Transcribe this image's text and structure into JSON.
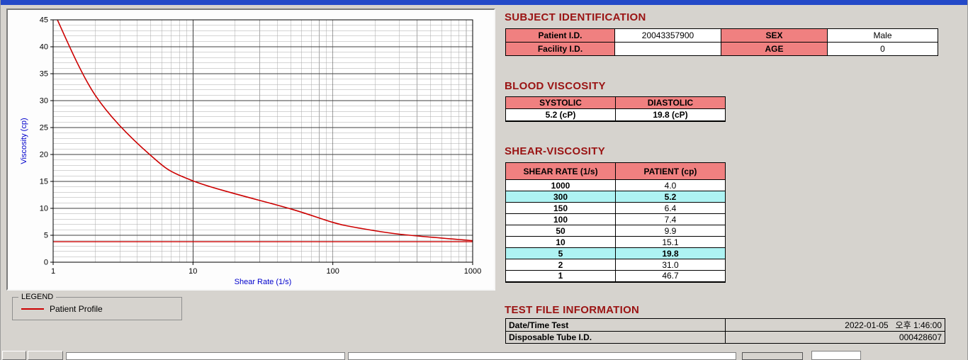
{
  "colors": {
    "header_pink": "#f08080",
    "highlight_cyan": "#aef3f3",
    "heading_maroon": "#9a1313",
    "axis_label_blue": "#0000cc",
    "series_red": "#cc0000",
    "titlebar_blue": "#2449c8"
  },
  "chart_data": {
    "type": "line",
    "x_scale": "log",
    "x": [
      1,
      2,
      5,
      10,
      50,
      100,
      150,
      300,
      1000
    ],
    "series": [
      {
        "name": "Patient Profile",
        "values": [
          46.7,
          31.0,
          19.8,
          15.1,
          9.9,
          7.4,
          6.4,
          5.2,
          4.0
        ]
      }
    ],
    "reference_line_y": 3.8,
    "title": "",
    "xlabel": "Shear Rate (1/s)",
    "ylabel": "Viscosity (cp)",
    "xlim": [
      1,
      1000
    ],
    "ylim": [
      0,
      45
    ],
    "y_major_ticks": [
      0,
      5,
      10,
      15,
      20,
      25,
      30,
      35,
      40,
      45
    ],
    "x_ticks": [
      1,
      10,
      100,
      1000
    ],
    "grid": true,
    "legend_position": "outside-bottom-left"
  },
  "legend": {
    "title": "LEGEND"
  },
  "subject": {
    "heading": "SUBJECT IDENTIFICATION",
    "rows": [
      {
        "label1": "Patient I.D.",
        "value1": "20043357900",
        "label2": "SEX",
        "value2": "Male"
      },
      {
        "label1": "Facility I.D.",
        "value1": "",
        "label2": "AGE",
        "value2": "0"
      }
    ]
  },
  "blood_viscosity": {
    "heading": "BLOOD VISCOSITY",
    "columns": [
      "SYSTOLIC",
      "DIASTOLIC"
    ],
    "values": [
      "5.2 (cP)",
      "19.8 (cP)"
    ]
  },
  "shear_viscosity": {
    "heading": "SHEAR-VISCOSITY",
    "columns": [
      "SHEAR RATE (1/s)",
      "PATIENT (cp)"
    ],
    "rows": [
      {
        "rate": "1000",
        "patient": "4.0",
        "highlight": false
      },
      {
        "rate": "300",
        "patient": "5.2",
        "highlight": true
      },
      {
        "rate": "150",
        "patient": "6.4",
        "highlight": false
      },
      {
        "rate": "100",
        "patient": "7.4",
        "highlight": false
      },
      {
        "rate": "50",
        "patient": "9.9",
        "highlight": false
      },
      {
        "rate": "10",
        "patient": "15.1",
        "highlight": false
      },
      {
        "rate": "5",
        "patient": "19.8",
        "highlight": true
      },
      {
        "rate": "2",
        "patient": "31.0",
        "highlight": false
      },
      {
        "rate": "1",
        "patient": "46.7",
        "highlight": false
      }
    ]
  },
  "test_file": {
    "heading": "TEST FILE INFORMATION",
    "rows": [
      {
        "label": "Date/Time Test",
        "value": "2022-01-05   오후 1:46:00"
      },
      {
        "label": "Disposable Tube I.D.",
        "value": "000428607"
      }
    ]
  }
}
